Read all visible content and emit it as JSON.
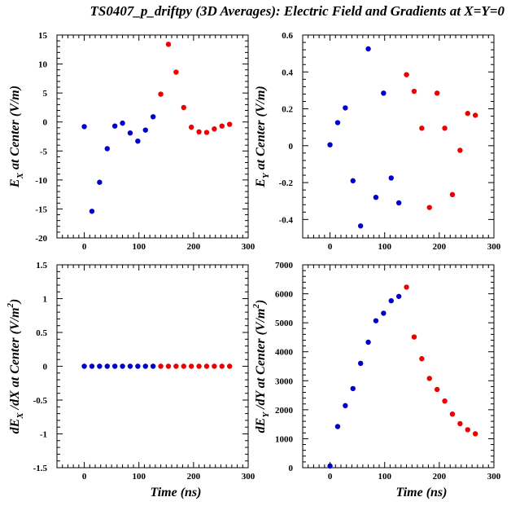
{
  "title": "TS0407_p_driftpy (3D Averages): Electric Field and Gradients at X=Y=0",
  "colors": {
    "blue": "#0000cc",
    "red": "#ee0000",
    "axis": "#000000",
    "background": "#ffffff"
  },
  "chart_data": [
    {
      "type": "scatter",
      "xlabel": "",
      "ylabel": "E_X at Center (V/m)",
      "ylabel_main": "E",
      "ylabel_sub": "X",
      "ylabel_sup": "",
      "ylabel_rest": " at Center (V/m)",
      "xlim": [
        -50,
        300
      ],
      "ylim": [
        -20,
        15
      ],
      "xticks": [
        "0",
        "100",
        "200",
        "300"
      ],
      "yticks": [
        "-20",
        "-15",
        "-10",
        "-5",
        "0",
        "5",
        "10",
        "15"
      ],
      "series": [
        {
          "color": "#0000cc",
          "points": [
            [
              0,
              -0.8
            ],
            [
              14,
              -15.4
            ],
            [
              28,
              -10.4
            ],
            [
              42,
              -4.6
            ],
            [
              56,
              -0.7
            ],
            [
              70,
              -0.2
            ],
            [
              84,
              -1.9
            ],
            [
              98,
              -3.3
            ],
            [
              112,
              -1.4
            ],
            [
              126,
              0.9
            ]
          ]
        },
        {
          "color": "#ee0000",
          "points": [
            [
              140,
              4.8
            ],
            [
              154,
              13.4
            ],
            [
              168,
              8.6
            ],
            [
              182,
              2.5
            ],
            [
              196,
              -0.9
            ],
            [
              210,
              -1.7
            ],
            [
              224,
              -1.8
            ],
            [
              238,
              -1.2
            ],
            [
              252,
              -0.7
            ],
            [
              266,
              -0.4
            ]
          ]
        }
      ]
    },
    {
      "type": "scatter",
      "xlabel": "",
      "ylabel": "E_Y at Center (V/m)",
      "ylabel_main": "E",
      "ylabel_sub": "Y",
      "ylabel_sup": "",
      "ylabel_rest": " at Center (V/m)",
      "xlim": [
        -50,
        300
      ],
      "ylim": [
        -0.5,
        0.6
      ],
      "xticks": [
        "0",
        "100",
        "200",
        "300"
      ],
      "yticks": [
        "-0.4",
        "-0.2",
        "0",
        "0.2",
        "0.4",
        "0.6"
      ],
      "series": [
        {
          "color": "#0000cc",
          "points": [
            [
              0,
              0.005
            ],
            [
              14,
              0.125
            ],
            [
              28,
              0.205
            ],
            [
              42,
              -0.19
            ],
            [
              56,
              -0.435
            ],
            [
              70,
              0.525
            ],
            [
              84,
              -0.28
            ],
            [
              98,
              0.285
            ],
            [
              112,
              -0.175
            ],
            [
              126,
              -0.31
            ]
          ]
        },
        {
          "color": "#ee0000",
          "points": [
            [
              140,
              0.385
            ],
            [
              154,
              0.295
            ],
            [
              168,
              0.095
            ],
            [
              182,
              -0.335
            ],
            [
              196,
              0.285
            ],
            [
              210,
              0.095
            ],
            [
              224,
              -0.265
            ],
            [
              238,
              -0.025
            ],
            [
              252,
              0.175
            ],
            [
              266,
              0.165
            ]
          ]
        }
      ]
    },
    {
      "type": "scatter",
      "xlabel": "Time (ns)",
      "ylabel": "dE_X/dX at Center (V/m^2)",
      "ylabel_main": "dE",
      "ylabel_sub": "X",
      "ylabel_sup": "2",
      "ylabel_rest": " /dX at Center (V/m",
      "ylabel_close": ")",
      "xlim": [
        -50,
        300
      ],
      "ylim": [
        -1.5,
        1.5
      ],
      "xticks": [
        "0",
        "100",
        "200",
        "300"
      ],
      "yticks": [
        "-1.5",
        "-1",
        "-0.5",
        "0",
        "0.5",
        "1",
        "1.5"
      ],
      "series": [
        {
          "color": "#0000cc",
          "points": [
            [
              0,
              0
            ],
            [
              14,
              0
            ],
            [
              28,
              0
            ],
            [
              42,
              0
            ],
            [
              56,
              0
            ],
            [
              70,
              0
            ],
            [
              84,
              0
            ],
            [
              98,
              0
            ],
            [
              112,
              0
            ],
            [
              126,
              0
            ]
          ]
        },
        {
          "color": "#ee0000",
          "points": [
            [
              140,
              0
            ],
            [
              154,
              0
            ],
            [
              168,
              0
            ],
            [
              182,
              0
            ],
            [
              196,
              0
            ],
            [
              210,
              0
            ],
            [
              224,
              0
            ],
            [
              238,
              0
            ],
            [
              252,
              0
            ],
            [
              266,
              0
            ]
          ]
        }
      ]
    },
    {
      "type": "scatter",
      "xlabel": "Time (ns)",
      "ylabel": "dE_Y/dY at Center (V/m^2)",
      "ylabel_main": "dE",
      "ylabel_sub": "Y",
      "ylabel_sup": "2",
      "ylabel_rest": " /dY at Center (V/m",
      "ylabel_close": ")",
      "xlim": [
        -50,
        300
      ],
      "ylim": [
        0,
        7000
      ],
      "xticks": [
        "0",
        "100",
        "200",
        "300"
      ],
      "yticks": [
        "0",
        "1000",
        "2000",
        "3000",
        "4000",
        "5000",
        "6000",
        "7000"
      ],
      "series": [
        {
          "color": "#0000cc",
          "points": [
            [
              0,
              60
            ],
            [
              14,
              1420
            ],
            [
              28,
              2140
            ],
            [
              42,
              2730
            ],
            [
              56,
              3600
            ],
            [
              70,
              4330
            ],
            [
              84,
              5070
            ],
            [
              98,
              5330
            ],
            [
              112,
              5760
            ],
            [
              126,
              5910
            ]
          ]
        },
        {
          "color": "#ee0000",
          "points": [
            [
              140,
              6230
            ],
            [
              154,
              4510
            ],
            [
              168,
              3760
            ],
            [
              182,
              3080
            ],
            [
              196,
              2700
            ],
            [
              210,
              2300
            ],
            [
              224,
              1850
            ],
            [
              238,
              1520
            ],
            [
              252,
              1310
            ],
            [
              266,
              1170
            ]
          ]
        }
      ]
    }
  ]
}
